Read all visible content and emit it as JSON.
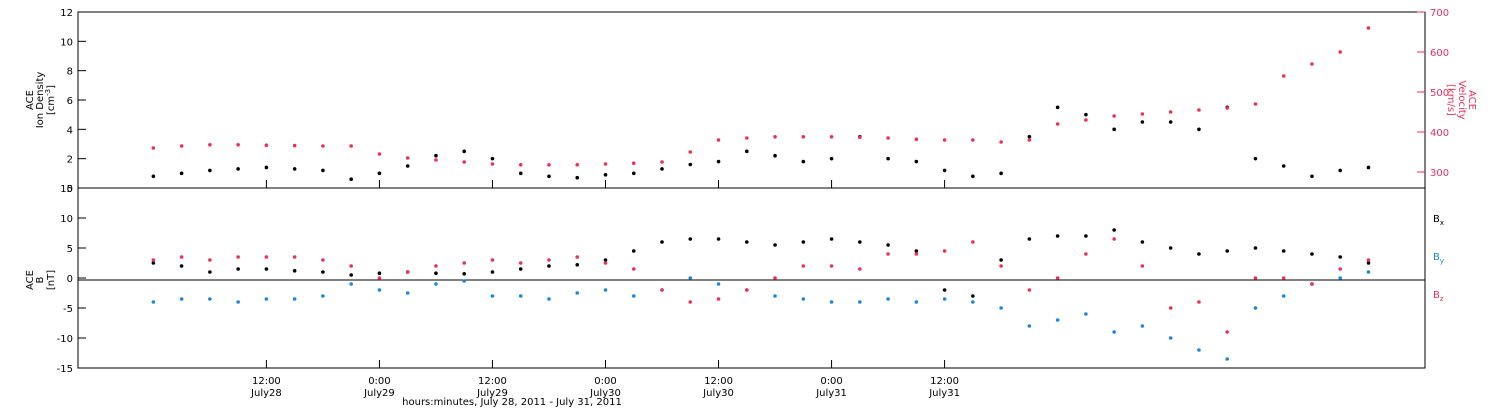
{
  "chart_data": [
    {
      "type": "scatter",
      "panel": "top",
      "ylabel_left": [
        "ACE",
        "Ion Density",
        "[cm⁻³]"
      ],
      "ylabel_right": [
        "ACE",
        "Velocity",
        "[km/s]"
      ],
      "ylim_left": [
        0,
        12
      ],
      "ylim_right": [
        260,
        700
      ],
      "yticks_left": [
        0,
        2,
        4,
        6,
        8,
        10,
        12
      ],
      "yticks_right": [
        300,
        400,
        500,
        600,
        700
      ],
      "grid": false,
      "series": [
        {
          "axis": "left",
          "color": "#000000",
          "x_hours": [
            0,
            3,
            6,
            9,
            12,
            15,
            18,
            21,
            24,
            27,
            30,
            33,
            36,
            39,
            42,
            45,
            48,
            51,
            54,
            57,
            60,
            63,
            66,
            69,
            72,
            75,
            78,
            81,
            84,
            87,
            90,
            93,
            96,
            99,
            102,
            105,
            108,
            111,
            114,
            117,
            120,
            123,
            126,
            129
          ],
          "values": [
            0.8,
            1.0,
            1.2,
            1.3,
            1.4,
            1.3,
            1.2,
            0.6,
            1.0,
            1.5,
            2.2,
            2.5,
            2.0,
            1.0,
            0.8,
            0.7,
            0.9,
            1.0,
            1.3,
            1.6,
            1.8,
            2.5,
            2.2,
            1.8,
            2.0,
            3.5,
            2.0,
            1.8,
            1.2,
            0.8,
            1.0,
            3.5,
            5.5,
            5.0,
            4.0,
            4.5,
            4.5,
            4.0,
            5.5,
            2.0,
            1.5,
            0.8,
            1.2,
            1.4
          ]
        },
        {
          "axis": "right",
          "color": "#e8325a",
          "x_hours": [
            0,
            3,
            6,
            9,
            12,
            15,
            18,
            21,
            24,
            27,
            30,
            33,
            36,
            39,
            42,
            45,
            48,
            51,
            54,
            57,
            60,
            63,
            66,
            69,
            72,
            75,
            78,
            81,
            84,
            87,
            90,
            93,
            96,
            99,
            102,
            105,
            108,
            111,
            114,
            117,
            120,
            123,
            126,
            129
          ],
          "values": [
            360,
            365,
            368,
            368,
            367,
            366,
            365,
            365,
            345,
            335,
            330,
            325,
            320,
            318,
            318,
            318,
            320,
            322,
            325,
            350,
            380,
            385,
            388,
            388,
            388,
            387,
            385,
            382,
            380,
            380,
            375,
            380,
            420,
            430,
            440,
            445,
            450,
            455,
            460,
            470,
            540,
            570,
            600,
            660
          ]
        }
      ]
    },
    {
      "type": "scatter",
      "panel": "bottom",
      "ylabel_left": [
        "ACE",
        "B",
        "[nT]"
      ],
      "ylim": [
        -15,
        15
      ],
      "yticks": [
        -15,
        -10,
        -5,
        0,
        5,
        10,
        15
      ],
      "grid": false,
      "reference_line": 0,
      "legend_placement": "right",
      "series": [
        {
          "name": "B",
          "name_sub": "x",
          "color": "#000000",
          "x_hours": [
            0,
            3,
            6,
            9,
            12,
            15,
            18,
            21,
            24,
            27,
            30,
            33,
            36,
            39,
            42,
            45,
            48,
            51,
            54,
            57,
            60,
            63,
            66,
            69,
            72,
            75,
            78,
            81,
            84,
            87,
            90,
            93,
            96,
            99,
            102,
            105,
            108,
            111,
            114,
            117,
            120,
            123,
            126,
            129
          ],
          "values": [
            2.5,
            2.0,
            1.0,
            1.5,
            1.5,
            1.2,
            1.0,
            0.5,
            0.8,
            1.0,
            0.8,
            0.7,
            1.0,
            1.5,
            2.0,
            2.2,
            3.0,
            4.5,
            6.0,
            6.5,
            6.5,
            6.0,
            5.5,
            6.0,
            6.5,
            6.0,
            5.5,
            4.5,
            -2.0,
            -3.0,
            3.0,
            6.5,
            7.0,
            7.0,
            8.0,
            6.0,
            5.0,
            4.0,
            4.5,
            5.0,
            4.5,
            4.0,
            3.5,
            2.5
          ]
        },
        {
          "name": "B",
          "name_sub": "y",
          "color": "#1f86d9",
          "x_hours": [
            0,
            3,
            6,
            9,
            12,
            15,
            18,
            21,
            24,
            27,
            30,
            33,
            36,
            39,
            42,
            45,
            48,
            51,
            54,
            57,
            60,
            63,
            66,
            69,
            72,
            75,
            78,
            81,
            84,
            87,
            90,
            93,
            96,
            99,
            102,
            105,
            108,
            111,
            114,
            117,
            120,
            123,
            126,
            129
          ],
          "values": [
            -4.0,
            -3.5,
            -3.5,
            -4.0,
            -3.5,
            -3.5,
            -3.0,
            -1.0,
            -2.0,
            -2.5,
            -1.0,
            -0.5,
            -3.0,
            -3.0,
            -3.5,
            -2.5,
            -2.0,
            -3.0,
            -2.0,
            0.0,
            -1.0,
            -2.0,
            -3.0,
            -3.5,
            -4.0,
            -4.0,
            -3.5,
            -4.0,
            -3.5,
            -4.0,
            -5.0,
            -8.0,
            -7.0,
            -6.0,
            -9.0,
            -8.0,
            -10.0,
            -12.0,
            -13.5,
            -5.0,
            -3.0,
            -1.0,
            0.0,
            1.0
          ]
        },
        {
          "name": "B",
          "name_sub": "z",
          "color": "#e8325a",
          "x_hours": [
            0,
            3,
            6,
            9,
            12,
            15,
            18,
            21,
            24,
            27,
            30,
            33,
            36,
            39,
            42,
            45,
            48,
            51,
            54,
            57,
            60,
            63,
            66,
            69,
            72,
            75,
            78,
            81,
            84,
            87,
            90,
            93,
            96,
            99,
            102,
            105,
            108,
            111,
            114,
            117,
            120,
            123,
            126,
            129
          ],
          "values": [
            3.0,
            3.5,
            3.0,
            3.5,
            3.5,
            3.5,
            3.0,
            2.0,
            0.0,
            1.0,
            2.0,
            2.5,
            3.0,
            2.5,
            3.0,
            3.5,
            2.5,
            1.5,
            -2.0,
            -4.0,
            -3.5,
            -2.0,
            0.0,
            2.0,
            2.0,
            1.5,
            4.0,
            4.0,
            4.5,
            6.0,
            2.0,
            -2.0,
            0.0,
            4.0,
            6.5,
            2.0,
            -5.0,
            -4.0,
            -9.0,
            0.0,
            0.0,
            -1.0,
            1.5,
            3.0
          ]
        }
      ]
    }
  ],
  "x_axis": {
    "xlabel": "hours:minutes, July 28, 2011 - July 31, 2011",
    "xlim_hours": [
      -8,
      135
    ],
    "ticks": [
      {
        "hours": 12,
        "time": "12:00",
        "date": "July28"
      },
      {
        "hours": 24,
        "time": "0:00",
        "date": "July29"
      },
      {
        "hours": 36,
        "time": "12:00",
        "date": "July29"
      },
      {
        "hours": 48,
        "time": "0:00",
        "date": "July30"
      },
      {
        "hours": 60,
        "time": "12:00",
        "date": "July30"
      },
      {
        "hours": 72,
        "time": "0:00",
        "date": "July31"
      },
      {
        "hours": 84,
        "time": "12:00",
        "date": "July31"
      }
    ]
  },
  "top_panel": {
    "ylabel_left_1": "ACE",
    "ylabel_left_2": "Ion Density",
    "ylabel_left_3": "[cm",
    "ylabel_left_3_sup": "-3",
    "ylabel_left_3_end": "]",
    "ylabel_right_1": "ACE",
    "ylabel_right_2": "Velocity",
    "ylabel_right_3": "[km/s]"
  },
  "bottom_panel": {
    "ylabel_left_1": "ACE",
    "ylabel_left_2": "B",
    "ylabel_left_3": "[nT]",
    "legend": [
      {
        "name": "B",
        "sub": "x",
        "color": "#000000"
      },
      {
        "name": "B",
        "sub": "y",
        "color": "#1f86d9"
      },
      {
        "name": "B",
        "sub": "z",
        "color": "#e8325a"
      }
    ]
  }
}
